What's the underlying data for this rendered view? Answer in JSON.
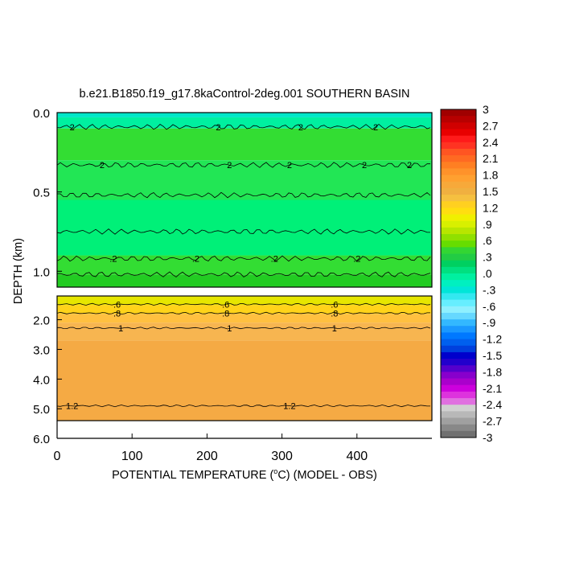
{
  "chart_data": {
    "type": "heatmap",
    "title": "b.e21.B1850.f19_g17.8kaControl-2deg.001 SOUTHERN BASIN",
    "xlabel": "POTENTIAL TEMPERATURE (°C) (MODEL - OBS)",
    "xlabel_parts": [
      "POTENTIAL TEMPERATURE (",
      "o",
      "C) (MODEL - OBS)"
    ],
    "ylabel": "DEPTH (km)",
    "xlim": [
      0,
      500
    ],
    "x_ticks": [
      "0",
      "100",
      "200",
      "300",
      "400"
    ],
    "x_tick_values": [
      0,
      100,
      200,
      300,
      400
    ],
    "panels": [
      {
        "name": "upper",
        "ylim": [
          0.0,
          1.1
        ],
        "y_ticks": [
          "0.0",
          "0.5",
          "1.0"
        ],
        "y_tick_values": [
          0.0,
          0.5,
          1.0
        ],
        "bands": [
          {
            "from": 0.0,
            "to": 0.03,
            "color": "#00e6c8"
          },
          {
            "from": 0.03,
            "to": 0.1,
            "color": "#00f0a0"
          },
          {
            "from": 0.1,
            "to": 0.3,
            "color": "#33dd33"
          },
          {
            "from": 0.3,
            "to": 0.55,
            "color": "#22e655"
          },
          {
            "from": 0.55,
            "to": 0.9,
            "color": "#00f078"
          },
          {
            "from": 0.9,
            "to": 1.02,
            "color": "#33dd33"
          },
          {
            "from": 1.02,
            "to": 1.1,
            "color": "#22cc22"
          }
        ],
        "contours": [
          {
            "depth": 0.09,
            "label": "2",
            "label_x": [
              20,
              215,
              325,
              425
            ]
          },
          {
            "depth": 0.33,
            "label": "2",
            "label_x": [
              60,
              230,
              310,
              410,
              470
            ]
          },
          {
            "depth": 0.52,
            "label": "",
            "label_x": []
          },
          {
            "depth": 0.75,
            "label": "",
            "label_x": []
          },
          {
            "depth": 0.92,
            "label": ".2",
            "label_x": [
              75,
              185,
              290,
              400
            ]
          },
          {
            "depth": 1.02,
            "label": "",
            "label_x": []
          }
        ]
      },
      {
        "name": "lower",
        "ylim": [
          1.2,
          5.4
        ],
        "y_ticks": [
          "2.0",
          "3.0",
          "4.0",
          "5.0"
        ],
        "y_tick_values": [
          2.0,
          3.0,
          4.0,
          5.0
        ],
        "bands": [
          {
            "from": 1.2,
            "to": 1.5,
            "color": "#e6e600"
          },
          {
            "from": 1.5,
            "to": 1.8,
            "color": "#ffd31a"
          },
          {
            "from": 1.8,
            "to": 2.1,
            "color": "#ffc040"
          },
          {
            "from": 2.1,
            "to": 2.7,
            "color": "#f7b550"
          },
          {
            "from": 2.7,
            "to": 5.4,
            "color": "#f5aa44"
          }
        ],
        "contours": [
          {
            "depth": 1.48,
            "label": ".6",
            "label_x": [
              80,
              225,
              370
            ]
          },
          {
            "depth": 1.78,
            "label": ".8",
            "label_x": [
              80,
              225,
              370
            ]
          },
          {
            "depth": 2.28,
            "label": "1",
            "label_x": [
              85,
              230,
              370
            ]
          },
          {
            "depth": 4.9,
            "label": "1.2",
            "label_x": [
              20,
              310
            ]
          }
        ]
      }
    ],
    "colorbar": {
      "labels": [
        "3",
        "2.7",
        "2.4",
        "2.1",
        "1.8",
        "1.5",
        "1.2",
        ".9",
        ".6",
        ".3",
        ".0",
        "-.3",
        "-.6",
        "-.9",
        "-1.2",
        "-1.5",
        "-1.8",
        "-2.1",
        "-2.4",
        "-2.7",
        "-3"
      ],
      "values": [
        3,
        2.7,
        2.4,
        2.1,
        1.8,
        1.5,
        1.2,
        0.9,
        0.6,
        0.3,
        0.0,
        -0.3,
        -0.6,
        -0.9,
        -1.2,
        -1.5,
        -1.8,
        -2.1,
        -2.4,
        -2.7,
        -3
      ],
      "colors": [
        "#a00000",
        "#b80000",
        "#d00000",
        "#e80000",
        "#ff1a1a",
        "#ff3322",
        "#ff5522",
        "#ff6a22",
        "#ff7f22",
        "#ff922a",
        "#ffa030",
        "#f7a93a",
        "#f0b040",
        "#f5c040",
        "#ffd020",
        "#ffde10",
        "#f0f000",
        "#d8f000",
        "#b8e600",
        "#90e000",
        "#66dd00",
        "#33d633",
        "#22cc44",
        "#00d060",
        "#00e080",
        "#00f0a0",
        "#00f0c0",
        "#00e6d8",
        "#33e8f0",
        "#66eeff",
        "#8ef0ff",
        "#66d8ff",
        "#33b8ff",
        "#1a98ff",
        "#0078ff",
        "#0060ee",
        "#0040dd",
        "#0000cc",
        "#2200cc",
        "#5500cc",
        "#8800cc",
        "#aa00cc",
        "#cc00dd",
        "#dd33dd",
        "#e070e0",
        "#d0d0d0",
        "#b8b8b8",
        "#a0a0a0",
        "#888888",
        "#707070"
      ]
    }
  }
}
